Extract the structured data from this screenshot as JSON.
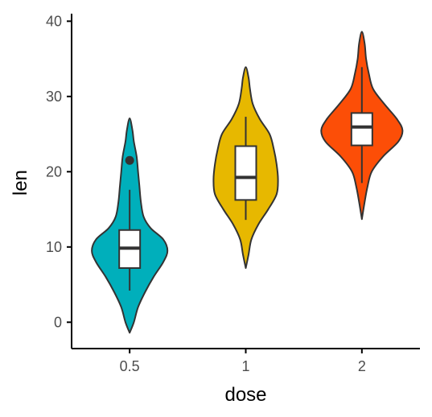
{
  "chart_data": {
    "type": "violin",
    "xlabel": "dose",
    "ylabel": "len",
    "categories": [
      "0.5",
      "1",
      "2"
    ],
    "ylim": [
      -3.5,
      41
    ],
    "yticks": [
      0,
      10,
      20,
      30,
      40
    ],
    "ytick_labels": [
      "0",
      "10",
      "20",
      "30",
      "40"
    ],
    "grid": false,
    "legend": "none",
    "colors": [
      "#00AFBB",
      "#E7B800",
      "#FC4E07"
    ],
    "series": [
      {
        "category": "0.5",
        "color": "#00AFBB",
        "violin_range": [
          -1.4,
          27.1
        ],
        "density_halfwidth_profile": [
          [
            -1.4,
            0.0
          ],
          [
            0.0,
            0.03
          ],
          [
            2.0,
            0.06
          ],
          [
            4.0,
            0.11
          ],
          [
            6.0,
            0.17
          ],
          [
            8.0,
            0.24
          ],
          [
            9.5,
            0.27
          ],
          [
            11.0,
            0.24
          ],
          [
            12.5,
            0.15
          ],
          [
            14.0,
            0.1
          ],
          [
            16.0,
            0.08
          ],
          [
            18.0,
            0.07
          ],
          [
            20.0,
            0.06
          ],
          [
            22.0,
            0.05
          ],
          [
            24.0,
            0.03
          ],
          [
            25.5,
            0.02
          ],
          [
            27.1,
            0.0
          ]
        ],
        "box": {
          "whisker_low": 4.2,
          "q1": 7.2,
          "median": 9.85,
          "q3": 12.25,
          "whisker_high": 17.6
        },
        "outliers": [
          21.5
        ]
      },
      {
        "category": "1",
        "color": "#E7B800",
        "violin_range": [
          7.2,
          33.9
        ],
        "density_halfwidth_profile": [
          [
            7.2,
            0.0
          ],
          [
            9.0,
            0.02
          ],
          [
            11.0,
            0.04
          ],
          [
            13.0,
            0.09
          ],
          [
            15.0,
            0.16
          ],
          [
            17.0,
            0.22
          ],
          [
            19.0,
            0.23
          ],
          [
            21.0,
            0.22
          ],
          [
            23.0,
            0.2
          ],
          [
            25.0,
            0.17
          ],
          [
            27.0,
            0.1
          ],
          [
            29.0,
            0.05
          ],
          [
            31.0,
            0.03
          ],
          [
            32.5,
            0.02
          ],
          [
            33.9,
            0.0
          ]
        ],
        "box": {
          "whisker_low": 13.6,
          "q1": 16.25,
          "median": 19.25,
          "q3": 23.4,
          "whisker_high": 27.3
        },
        "outliers": []
      },
      {
        "category": "2",
        "color": "#FC4E07",
        "violin_range": [
          13.7,
          38.6
        ],
        "density_halfwidth_profile": [
          [
            13.7,
            0.0
          ],
          [
            16.0,
            0.02
          ],
          [
            18.0,
            0.04
          ],
          [
            20.0,
            0.07
          ],
          [
            22.0,
            0.15
          ],
          [
            24.0,
            0.26
          ],
          [
            25.5,
            0.29
          ],
          [
            27.0,
            0.25
          ],
          [
            29.0,
            0.16
          ],
          [
            31.0,
            0.08
          ],
          [
            33.0,
            0.05
          ],
          [
            35.0,
            0.03
          ],
          [
            37.0,
            0.02
          ],
          [
            38.6,
            0.0
          ]
        ],
        "box": {
          "whisker_low": 18.5,
          "q1": 23.5,
          "median": 25.95,
          "q3": 27.8,
          "whisker_high": 33.9
        },
        "outliers": []
      }
    ]
  }
}
